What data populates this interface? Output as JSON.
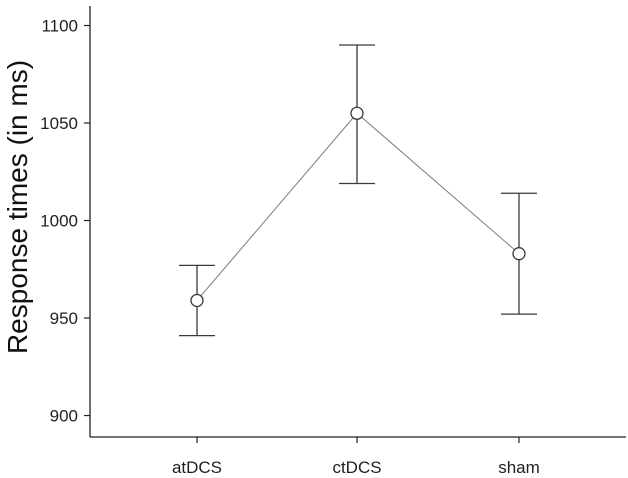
{
  "chart_data": {
    "type": "line",
    "title": "",
    "xlabel": "",
    "ylabel": "Response times (in ms)",
    "categories": [
      "atDCS",
      "ctDCS",
      "sham"
    ],
    "series": [
      {
        "values": [
          959,
          1055,
          983
        ],
        "error_upper": [
          977,
          1090,
          1014
        ],
        "error_lower": [
          941,
          1019,
          952
        ]
      }
    ],
    "ylim": [
      889,
      1110
    ],
    "yticks": [
      900,
      950,
      1000,
      1050,
      1100
    ],
    "ytick_labels": [
      "900",
      "950",
      "1000",
      "1050",
      "1100"
    ],
    "grid": false,
    "legend": "none",
    "marker": "open-circle",
    "colors": {
      "line": "#7a7a7a",
      "marker": "#3a3a3a",
      "error_bar": "#3a3a3a",
      "axis": "#222222"
    }
  }
}
